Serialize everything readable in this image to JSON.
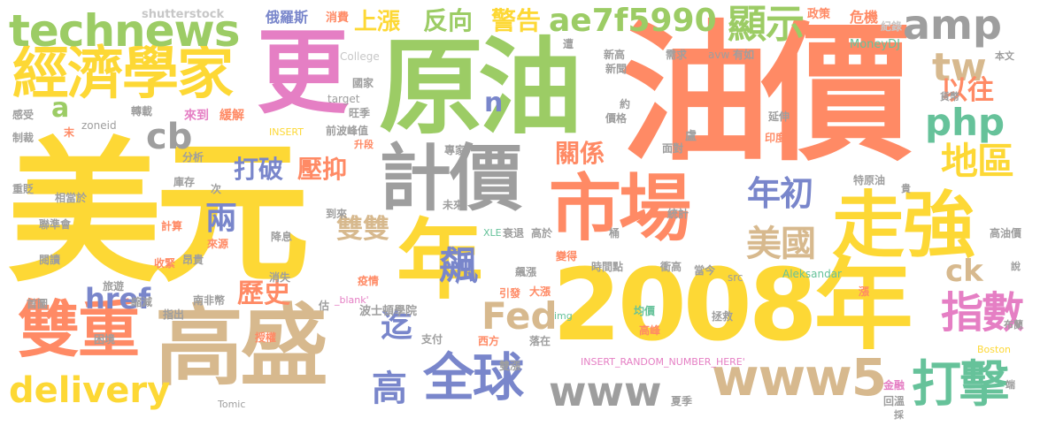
{
  "colors": {
    "yellow": "#fdd835",
    "orange": "#ff8a65",
    "green": "#9ccc65",
    "blue": "#7986cb",
    "gray": "#9e9e9e",
    "pink": "#e57fc4",
    "tan": "#d7b98e",
    "teal": "#66c29a",
    "lightgray": "#c7c7c7"
  },
  "words": [
    {
      "text": "美元",
      "color": "yellow"
    },
    {
      "text": "油價",
      "color": "orange"
    },
    {
      "text": "原油",
      "color": "green"
    },
    {
      "text": "2008年",
      "color": "yellow"
    },
    {
      "text": "市場",
      "color": "orange"
    },
    {
      "text": "計價",
      "color": "gray"
    },
    {
      "text": "高盛",
      "color": "tan"
    },
    {
      "text": "走強",
      "color": "yellow"
    },
    {
      "text": "年",
      "color": "yellow"
    },
    {
      "text": "更",
      "color": "pink"
    },
    {
      "text": "經濟學家",
      "color": "yellow"
    },
    {
      "text": "technews",
      "color": "green"
    },
    {
      "text": "雙重",
      "color": "orange"
    },
    {
      "text": "全球",
      "color": "blue"
    },
    {
      "text": "www5",
      "color": "tan"
    },
    {
      "text": "www",
      "color": "gray"
    },
    {
      "text": "打擊",
      "color": "teal"
    },
    {
      "text": "delivery",
      "color": "yellow"
    },
    {
      "text": "Fed",
      "color": "tan"
    },
    {
      "text": "amp",
      "color": "gray"
    },
    {
      "text": "ae7f5990",
      "color": "green"
    },
    {
      "text": "顯示",
      "color": "green"
    },
    {
      "text": "指數",
      "color": "pink"
    },
    {
      "text": "地區",
      "color": "yellow"
    },
    {
      "text": "美國",
      "color": "tan"
    },
    {
      "text": "年初",
      "color": "blue"
    },
    {
      "text": "php",
      "color": "teal"
    },
    {
      "text": "tw",
      "color": "tan"
    },
    {
      "text": "cb",
      "color": "gray"
    },
    {
      "text": "href",
      "color": "blue"
    },
    {
      "text": "警告",
      "color": "yellow"
    },
    {
      "text": "反向",
      "color": "green"
    },
    {
      "text": "上漲",
      "color": "yellow"
    },
    {
      "text": "關係",
      "color": "orange"
    },
    {
      "text": "飆",
      "color": "blue"
    },
    {
      "text": "兩",
      "color": "blue"
    },
    {
      "text": "打破",
      "color": "blue"
    },
    {
      "text": "壓抑",
      "color": "orange"
    },
    {
      "text": "歷史",
      "color": "orange"
    },
    {
      "text": "雙雙",
      "color": "tan"
    },
    {
      "text": "以往",
      "color": "orange"
    },
    {
      "text": "ck",
      "color": "tan"
    },
    {
      "text": "迄",
      "color": "blue"
    },
    {
      "text": "高",
      "color": "blue"
    },
    {
      "text": "a",
      "color": "green"
    },
    {
      "text": "n",
      "color": "blue"
    },
    {
      "text": "shutterstock",
      "color": "lightgray"
    },
    {
      "text": "俄羅斯",
      "color": "blue"
    },
    {
      "text": "消費",
      "color": "orange"
    },
    {
      "text": "政策",
      "color": "orange"
    },
    {
      "text": "危機",
      "color": "orange"
    },
    {
      "text": "紀錄",
      "color": "lightgray"
    },
    {
      "text": "MoneyDJ",
      "color": "teal"
    },
    {
      "text": "College",
      "color": "lightgray"
    },
    {
      "text": "遭",
      "color": "gray"
    },
    {
      "text": "新高",
      "color": "gray"
    },
    {
      "text": "需求",
      "color": "gray"
    },
    {
      "text": "avw",
      "color": "gray"
    },
    {
      "text": "有如",
      "color": "gray"
    },
    {
      "text": "本文",
      "color": "gray"
    },
    {
      "text": "新聞",
      "color": "gray"
    },
    {
      "text": "國家",
      "color": "gray"
    },
    {
      "text": "target",
      "color": "gray"
    },
    {
      "text": "旺季",
      "color": "gray"
    },
    {
      "text": "感受",
      "color": "gray"
    },
    {
      "text": "轉載",
      "color": "gray"
    },
    {
      "text": "來到",
      "color": "pink"
    },
    {
      "text": "緩解",
      "color": "orange"
    },
    {
      "text": "zoneid",
      "color": "gray"
    },
    {
      "text": "制裁",
      "color": "gray"
    },
    {
      "text": "末",
      "color": "orange"
    },
    {
      "text": "INSERT",
      "color": "yellow"
    },
    {
      "text": "前波峰值",
      "color": "gray"
    },
    {
      "text": "約",
      "color": "gray"
    },
    {
      "text": "價格",
      "color": "gray"
    },
    {
      "text": "延伸",
      "color": "gray"
    },
    {
      "text": "貨幣",
      "color": "gray"
    },
    {
      "text": "印度",
      "color": "orange"
    },
    {
      "text": "分析",
      "color": "gray"
    },
    {
      "text": "升段",
      "color": "orange"
    },
    {
      "text": "專家",
      "color": "gray"
    },
    {
      "text": "盧",
      "color": "gray"
    },
    {
      "text": "面對",
      "color": "gray"
    },
    {
      "text": "特原油",
      "color": "gray"
    },
    {
      "text": "貴",
      "color": "gray"
    },
    {
      "text": "重貶",
      "color": "gray"
    },
    {
      "text": "庫存",
      "color": "gray"
    },
    {
      "text": "相當於",
      "color": "gray"
    },
    {
      "text": "次",
      "color": "gray"
    },
    {
      "text": "統計",
      "color": "gray"
    },
    {
      "text": "未來",
      "color": "gray"
    },
    {
      "text": "到來",
      "color": "gray"
    },
    {
      "text": "聯準會",
      "color": "gray"
    },
    {
      "text": "計算",
      "color": "orange"
    },
    {
      "text": "來源",
      "color": "orange"
    },
    {
      "text": "降息",
      "color": "gray"
    },
    {
      "text": "XLE",
      "color": "teal"
    },
    {
      "text": "衰退",
      "color": "gray"
    },
    {
      "text": "高於",
      "color": "gray"
    },
    {
      "text": "桶",
      "color": "gray"
    },
    {
      "text": "高油價",
      "color": "gray"
    },
    {
      "text": "閱讀",
      "color": "gray"
    },
    {
      "text": "收緊",
      "color": "orange"
    },
    {
      "text": "昂貴",
      "color": "gray"
    },
    {
      "text": "變得",
      "color": "orange"
    },
    {
      "text": "時間點",
      "color": "gray"
    },
    {
      "text": "衝高",
      "color": "gray"
    },
    {
      "text": "當今",
      "color": "gray"
    },
    {
      "text": "疫情",
      "color": "orange"
    },
    {
      "text": "飆漲",
      "color": "gray"
    },
    {
      "text": "Aleksandar",
      "color": "teal"
    },
    {
      "text": "src",
      "color": "gray"
    },
    {
      "text": "漲",
      "color": "orange"
    },
    {
      "text": "說",
      "color": "gray"
    },
    {
      "text": "旅遊",
      "color": "gray"
    },
    {
      "text": "消失",
      "color": "gray"
    },
    {
      "text": "首圖",
      "color": "gray"
    },
    {
      "text": "縮減",
      "color": "gray"
    },
    {
      "text": "南非幣",
      "color": "gray"
    },
    {
      "text": "_blank'",
      "color": "pink"
    },
    {
      "text": "引發",
      "color": "orange"
    },
    {
      "text": "大漲",
      "color": "orange"
    },
    {
      "text": "波士頓學院",
      "color": "gray"
    },
    {
      "text": "估",
      "color": "gray"
    },
    {
      "text": "指出",
      "color": "gray"
    },
    {
      "text": "均價",
      "color": "teal"
    },
    {
      "text": "拯救",
      "color": "gray"
    },
    {
      "text": "img",
      "color": "teal"
    },
    {
      "text": "高峰",
      "color": "orange"
    },
    {
      "text": "困境",
      "color": "gray"
    },
    {
      "text": "授權",
      "color": "orange"
    },
    {
      "text": "支付",
      "color": "gray"
    },
    {
      "text": "西方",
      "color": "orange"
    },
    {
      "text": "落在",
      "color": "gray"
    },
    {
      "text": "布蘭",
      "color": "gray"
    },
    {
      "text": "INSERT_RANDOM_NUMBER_HERE'",
      "color": "pink"
    },
    {
      "text": "Boston",
      "color": "yellow"
    },
    {
      "text": "雙漲",
      "color": "gray"
    },
    {
      "text": "金融",
      "color": "pink"
    },
    {
      "text": "端",
      "color": "gray"
    },
    {
      "text": "Tomic",
      "color": "gray"
    },
    {
      "text": "夏季",
      "color": "gray"
    },
    {
      "text": "回溫",
      "color": "gray"
    },
    {
      "text": "採",
      "color": "gray"
    }
  ]
}
